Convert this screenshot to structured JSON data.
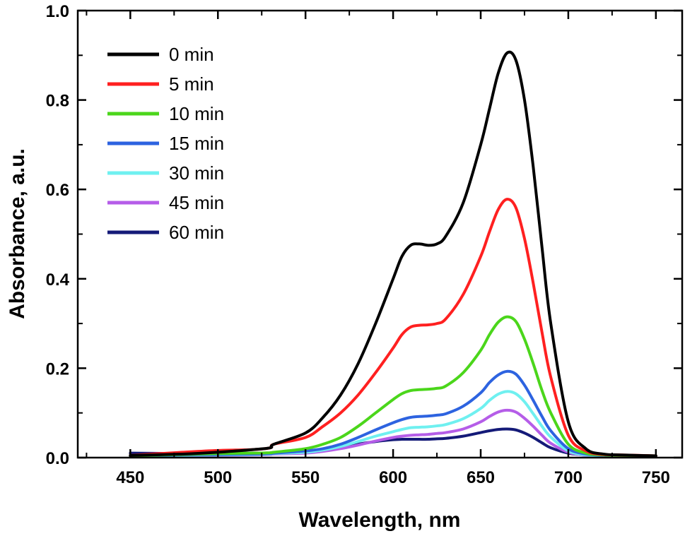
{
  "chart_data": {
    "type": "line",
    "title": "",
    "xlabel": "Wavelength, nm",
    "ylabel": "Absorbance, a.u.",
    "xlim": [
      420,
      765
    ],
    "ylim": [
      0,
      1.0
    ],
    "xticks": [
      "450",
      "500",
      "550",
      "600",
      "650",
      "700",
      "750"
    ],
    "yticks": [
      "0.0",
      "0.2",
      "0.4",
      "0.6",
      "0.8",
      "1.0"
    ],
    "grid": false,
    "legend_position": "top-left",
    "x": [
      450,
      480,
      500,
      520,
      530,
      532,
      550,
      560,
      570,
      580,
      590,
      600,
      605,
      610,
      615,
      620,
      625,
      630,
      640,
      650,
      655,
      660,
      665,
      670,
      675,
      680,
      685,
      690,
      700,
      710,
      720,
      730,
      750
    ],
    "series": [
      {
        "name": "0 min",
        "color": "#000000",
        "values": [
          0.005,
          0.008,
          0.012,
          0.018,
          0.022,
          0.03,
          0.055,
          0.09,
          0.14,
          0.21,
          0.3,
          0.4,
          0.45,
          0.475,
          0.478,
          0.475,
          0.478,
          0.495,
          0.57,
          0.7,
          0.78,
          0.86,
          0.905,
          0.89,
          0.8,
          0.65,
          0.47,
          0.3,
          0.08,
          0.02,
          0.008,
          0.006,
          0.004
        ]
      },
      {
        "name": "5 min",
        "color": "#ff2020",
        "values": [
          0.005,
          0.012,
          0.016,
          0.018,
          0.022,
          0.03,
          0.045,
          0.07,
          0.1,
          0.14,
          0.19,
          0.245,
          0.275,
          0.292,
          0.296,
          0.297,
          0.3,
          0.31,
          0.365,
          0.45,
          0.505,
          0.555,
          0.578,
          0.56,
          0.49,
          0.39,
          0.28,
          0.18,
          0.05,
          0.015,
          0.007,
          0.006,
          0.004
        ]
      },
      {
        "name": "10 min",
        "color": "#4bd61b",
        "values": [
          0.004,
          0.007,
          0.009,
          0.01,
          0.011,
          0.012,
          0.02,
          0.03,
          0.045,
          0.07,
          0.1,
          0.13,
          0.143,
          0.15,
          0.152,
          0.153,
          0.155,
          0.16,
          0.19,
          0.24,
          0.275,
          0.303,
          0.315,
          0.305,
          0.265,
          0.21,
          0.15,
          0.1,
          0.03,
          0.01,
          0.006,
          0.005,
          0.004
        ]
      },
      {
        "name": "15 min",
        "color": "#2d63e0",
        "values": [
          0.003,
          0.006,
          0.007,
          0.008,
          0.009,
          0.01,
          0.015,
          0.02,
          0.03,
          0.045,
          0.062,
          0.078,
          0.085,
          0.09,
          0.092,
          0.093,
          0.095,
          0.098,
          0.115,
          0.145,
          0.168,
          0.185,
          0.193,
          0.187,
          0.162,
          0.128,
          0.092,
          0.06,
          0.02,
          0.008,
          0.005,
          0.004,
          0.003
        ]
      },
      {
        "name": "30 min",
        "color": "#6ff0f0",
        "values": [
          0.003,
          0.005,
          0.006,
          0.007,
          0.008,
          0.009,
          0.012,
          0.017,
          0.025,
          0.036,
          0.048,
          0.058,
          0.063,
          0.067,
          0.068,
          0.069,
          0.071,
          0.074,
          0.087,
          0.11,
          0.128,
          0.142,
          0.148,
          0.143,
          0.125,
          0.098,
          0.07,
          0.046,
          0.015,
          0.006,
          0.004,
          0.004,
          0.003
        ]
      },
      {
        "name": "45 min",
        "color": "#b55de8",
        "values": [
          0.003,
          0.004,
          0.005,
          0.006,
          0.007,
          0.008,
          0.01,
          0.014,
          0.02,
          0.028,
          0.037,
          0.045,
          0.048,
          0.05,
          0.051,
          0.052,
          0.054,
          0.056,
          0.064,
          0.08,
          0.092,
          0.102,
          0.106,
          0.102,
          0.088,
          0.07,
          0.05,
          0.032,
          0.012,
          0.005,
          0.004,
          0.003,
          0.003
        ]
      },
      {
        "name": "60 min",
        "color": "#141a78",
        "values": [
          0.01,
          0.009,
          0.009,
          0.01,
          0.01,
          0.01,
          0.012,
          0.016,
          0.022,
          0.03,
          0.036,
          0.04,
          0.041,
          0.041,
          0.041,
          0.041,
          0.042,
          0.043,
          0.048,
          0.056,
          0.06,
          0.063,
          0.064,
          0.062,
          0.055,
          0.045,
          0.033,
          0.022,
          0.01,
          0.006,
          0.005,
          0.005,
          0.004
        ]
      }
    ]
  }
}
